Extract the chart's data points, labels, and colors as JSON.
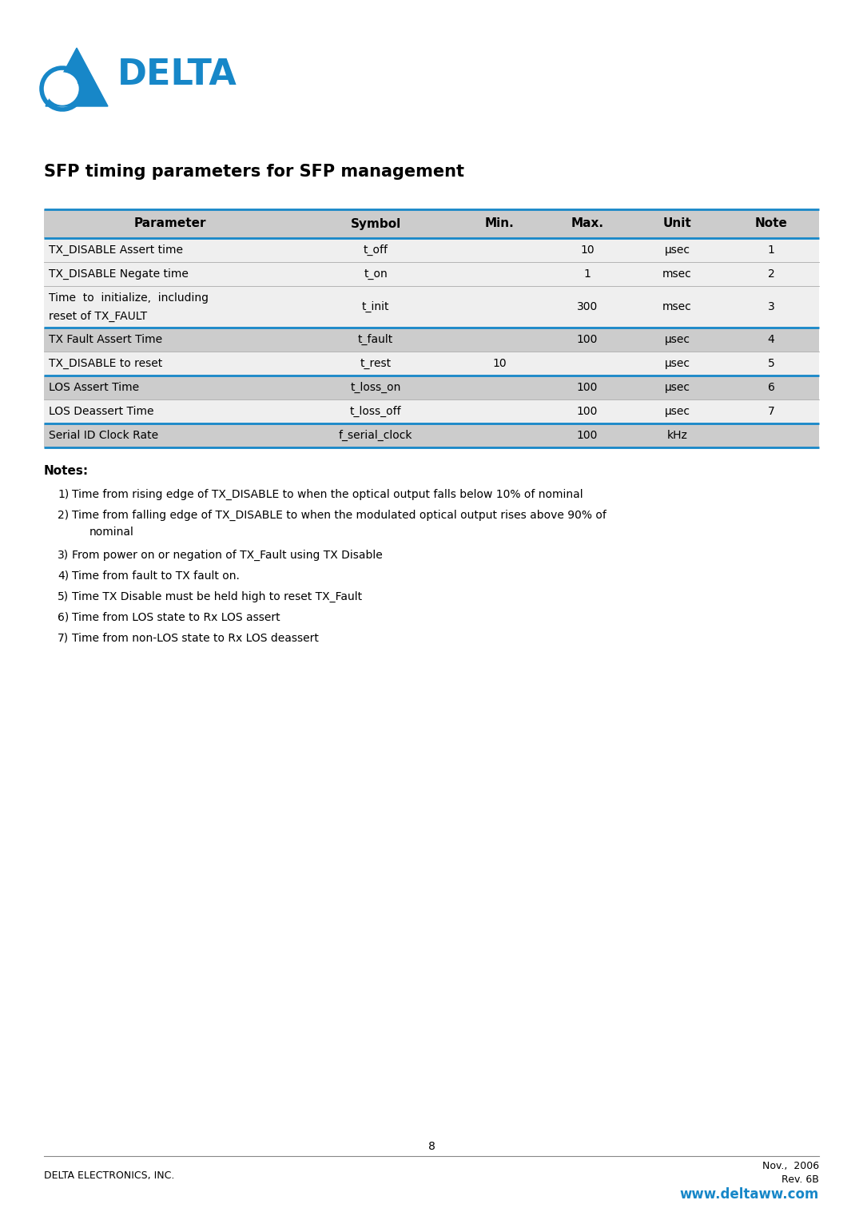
{
  "title": "SFP timing parameters for SFP management",
  "header_bg": "#CCCCCC",
  "row_bg_dark": "#CCCCCC",
  "row_bg_light": "#EFEFEF",
  "header_cols": [
    "Parameter",
    "Symbol",
    "Min.",
    "Max.",
    "Unit",
    "Note"
  ],
  "rows": [
    {
      "param": "TX_DISABLE Assert time",
      "symbol": "t_off",
      "min": "",
      "max": "10",
      "unit": "μsec",
      "note": "1",
      "shaded": false
    },
    {
      "param": "TX_DISABLE Negate time",
      "symbol": "t_on",
      "min": "",
      "max": "1",
      "unit": "msec",
      "note": "2",
      "shaded": false
    },
    {
      "param": "Time  to  initialize,  including\nreset of TX_FAULT",
      "symbol": "t_init",
      "min": "",
      "max": "300",
      "unit": "msec",
      "note": "3",
      "shaded": false
    },
    {
      "param": "TX Fault Assert Time",
      "symbol": "t_fault",
      "min": "",
      "max": "100",
      "unit": "μsec",
      "note": "4",
      "shaded": true
    },
    {
      "param": "TX_DISABLE to reset",
      "symbol": "t_rest",
      "min": "10",
      "max": "",
      "unit": "μsec",
      "note": "5",
      "shaded": false
    },
    {
      "param": "LOS Assert Time",
      "symbol": "t_loss_on",
      "min": "",
      "max": "100",
      "unit": "μsec",
      "note": "6",
      "shaded": true
    },
    {
      "param": "LOS Deassert Time",
      "symbol": "t_loss_off",
      "min": "",
      "max": "100",
      "unit": "μsec",
      "note": "7",
      "shaded": false
    },
    {
      "param": "Serial ID Clock Rate",
      "symbol": "f_serial_clock",
      "min": "",
      "max": "100",
      "unit": "kHz",
      "note": "",
      "shaded": true
    }
  ],
  "notes_title": "Notes:",
  "notes": [
    [
      "1)",
      "Time from rising edge of TX_DISABLE to when the optical output falls below 10% of nominal"
    ],
    [
      "2)",
      "Time from falling edge of TX_DISABLE to when the modulated optical output rises above 90% of\nnominal"
    ],
    [
      "3)",
      "From power on or negation of TX_Fault using TX Disable"
    ],
    [
      "4)",
      "Time from fault to TX fault on."
    ],
    [
      "5)",
      "Time TX Disable must be held high to reset TX_Fault"
    ],
    [
      "6)",
      "Time from LOS state to Rx LOS assert"
    ],
    [
      "7)",
      "Time from non-LOS state to Rx LOS deassert"
    ]
  ],
  "footer_left": "DELTA ELECTRONICS, INC.",
  "footer_center": "8",
  "footer_right_line1": "Nov.,  2006",
  "footer_right_line2": "Rev. 6B",
  "footer_url": "www.deltaww.com",
  "delta_blue": "#1787C8",
  "page_bg": "#FFFFFF",
  "logo_text": "DELTA",
  "table_border_lw": 2.0,
  "col_sep_lw": 0.0,
  "row_sep_color": "#AAAAAA",
  "blue_sep_rows": [
    3,
    5,
    7
  ]
}
